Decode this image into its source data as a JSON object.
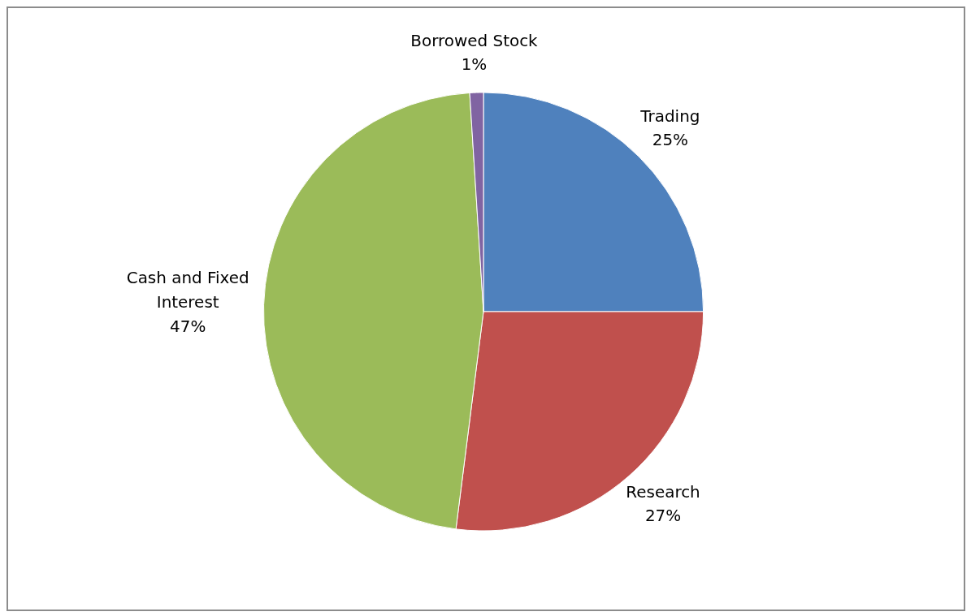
{
  "chart_data": {
    "type": "pie",
    "categories": [
      "Trading",
      "Research",
      "Cash and Fixed Interest",
      "Borrowed Stock"
    ],
    "values": [
      25,
      27,
      47,
      1
    ],
    "value_labels": [
      "25%",
      "27%",
      "47%",
      "1%"
    ],
    "colors": [
      "#4f81bd",
      "#c0504d",
      "#9bbb59",
      "#8064a2"
    ],
    "legend": false
  }
}
